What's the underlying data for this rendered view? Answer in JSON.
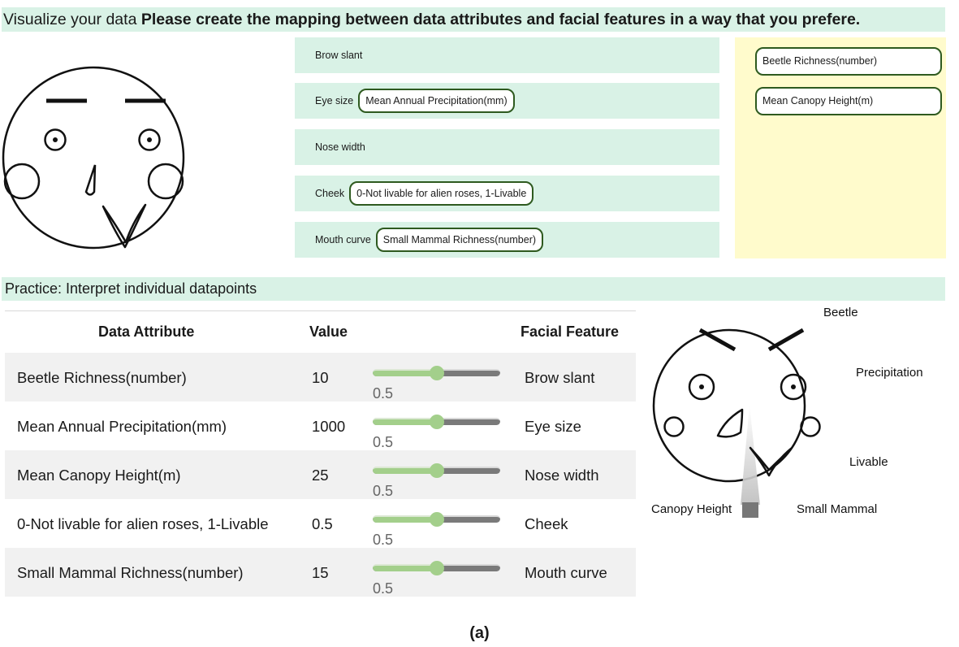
{
  "header": {
    "prefix": "Visualize your data",
    "instruction": "Please create the mapping between data attributes and facial features in a way that you prefere."
  },
  "features": [
    {
      "label": "Brow slant",
      "assigned": ""
    },
    {
      "label": "Eye size",
      "assigned": "Mean Annual Precipitation(mm)"
    },
    {
      "label": "Nose width",
      "assigned": ""
    },
    {
      "label": "Cheek",
      "assigned": "0-Not livable for alien roses, 1-Livable"
    },
    {
      "label": "Mouth curve",
      "assigned": "Small Mammal Richness(number)"
    }
  ],
  "pool": [
    "Beetle Richness(number)",
    "Mean Canopy Height(m)"
  ],
  "practice": {
    "title": "Practice: Interpret individual datapoints",
    "headers": {
      "attribute": "Data Attribute",
      "value": "Value",
      "feature": "Facial Feature"
    },
    "rows": [
      {
        "attribute": "Beetle Richness(number)",
        "value": "10",
        "slider": 0.5,
        "slider_label": "0.5",
        "feature": "Brow slant"
      },
      {
        "attribute": "Mean Annual Precipitation(mm)",
        "value": "1000",
        "slider": 0.5,
        "slider_label": "0.5",
        "feature": "Eye size"
      },
      {
        "attribute": "Mean Canopy Height(m)",
        "value": "25",
        "slider": 0.5,
        "slider_label": "0.5",
        "feature": "Nose width"
      },
      {
        "attribute": "0-Not livable for alien roses, 1-Livable",
        "value": "0.5",
        "slider": 0.5,
        "slider_label": "0.5",
        "feature": "Cheek"
      },
      {
        "attribute": "Small Mammal Richness(number)",
        "value": "15",
        "slider": 0.5,
        "slider_label": "0.5",
        "feature": "Mouth curve"
      }
    ]
  },
  "face_labels": {
    "beetle": "Beetle",
    "precipitation": "Precipitation",
    "livable": "Livable",
    "canopy": "Canopy Height",
    "mammal": "Small Mammal"
  },
  "caption": "(a)"
}
